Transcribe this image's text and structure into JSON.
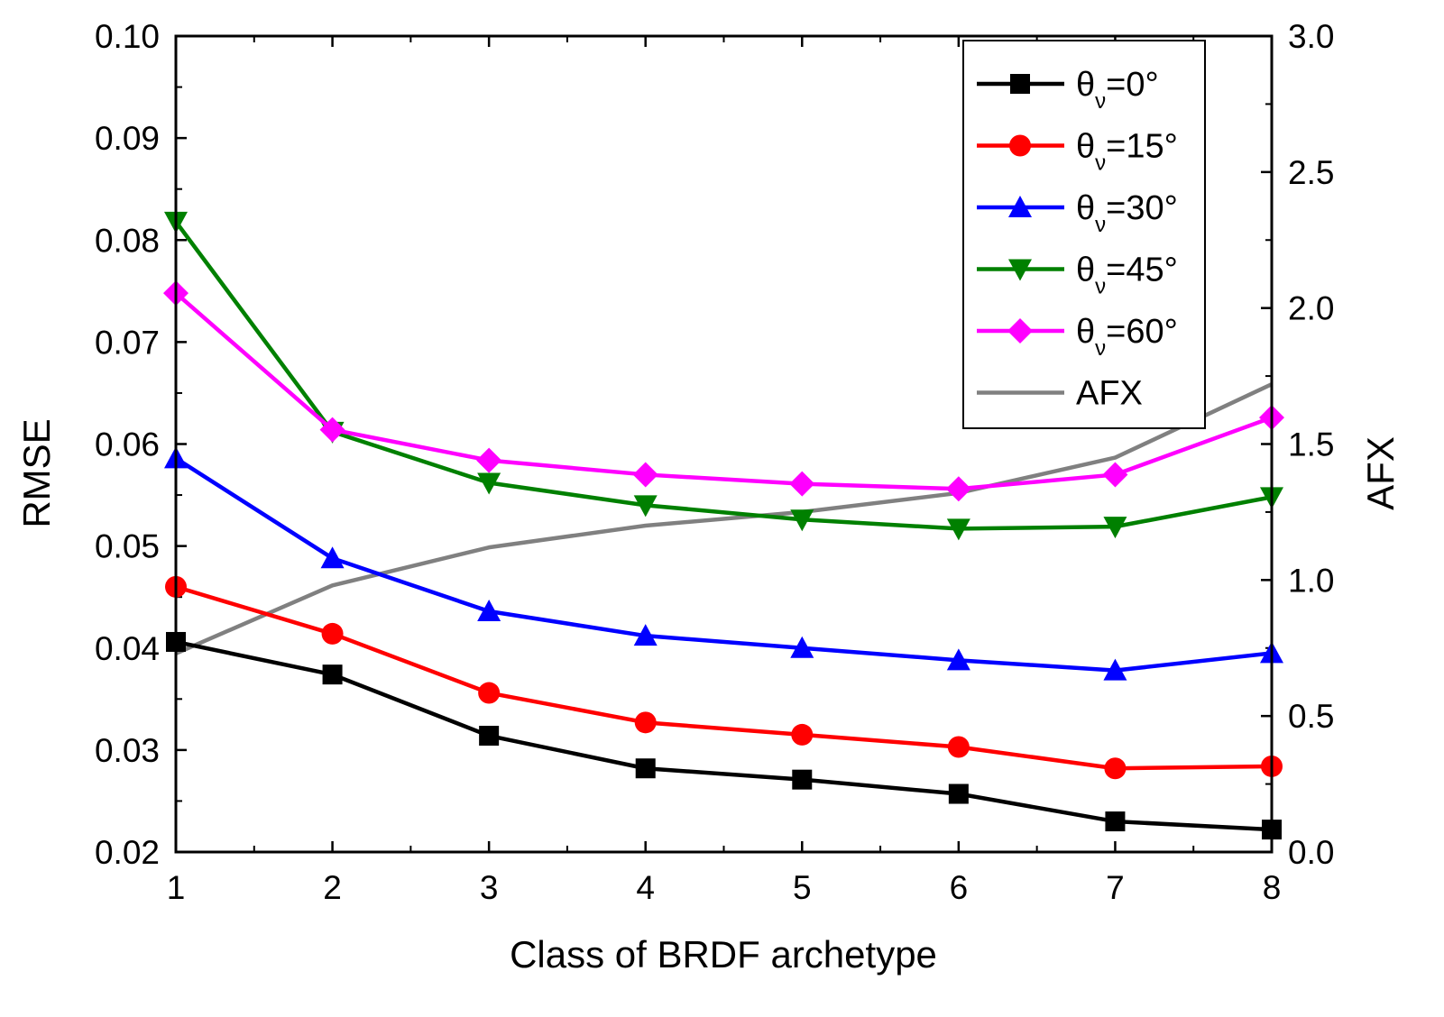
{
  "chart_data": {
    "type": "line",
    "title": "",
    "xlabel": "Class of BRDF archetype",
    "ylabel": "RMSE",
    "y2label": "AFX",
    "x": [
      1,
      2,
      3,
      4,
      5,
      6,
      7,
      8
    ],
    "x_ticks": [
      "1",
      "2",
      "3",
      "4",
      "5",
      "6",
      "7",
      "8"
    ],
    "xlim": [
      1,
      8
    ],
    "ylim": [
      0.02,
      0.1
    ],
    "y_ticks": [
      "0.02",
      "0.03",
      "0.04",
      "0.05",
      "0.06",
      "0.07",
      "0.08",
      "0.09",
      "0.10"
    ],
    "y2lim": [
      0.0,
      3.0
    ],
    "y2_ticks": [
      "0.0",
      "0.5",
      "1.0",
      "1.5",
      "2.0",
      "2.5",
      "3.0"
    ],
    "grid": false,
    "legend_position": "top-right",
    "series": [
      {
        "name": "θν=0°",
        "symbol": "θ",
        "sub": "ν",
        "suffix": "=0°",
        "color": "#000000",
        "marker": "square",
        "axis": "left",
        "values": [
          0.0406,
          0.0374,
          0.0314,
          0.0282,
          0.0271,
          0.0257,
          0.023,
          0.0222
        ]
      },
      {
        "name": "θν=15°",
        "symbol": "θ",
        "sub": "ν",
        "suffix": "=15°",
        "color": "#ff0000",
        "marker": "circle",
        "axis": "left",
        "values": [
          0.046,
          0.0414,
          0.0356,
          0.0327,
          0.0315,
          0.0303,
          0.0282,
          0.0284
        ]
      },
      {
        "name": "θν=30°",
        "symbol": "θ",
        "sub": "ν",
        "suffix": "=30°",
        "color": "#0000ff",
        "marker": "triangle-up",
        "axis": "left",
        "values": [
          0.0586,
          0.0488,
          0.0436,
          0.0412,
          0.04,
          0.0388,
          0.0378,
          0.0395
        ]
      },
      {
        "name": "θν=45°",
        "symbol": "θ",
        "sub": "ν",
        "suffix": "=45°",
        "color": "#008000",
        "marker": "triangle-down",
        "axis": "left",
        "values": [
          0.0818,
          0.0612,
          0.0562,
          0.054,
          0.0526,
          0.0517,
          0.0519,
          0.0548
        ]
      },
      {
        "name": "θν=60°",
        "symbol": "θ",
        "sub": "ν",
        "suffix": "=60°",
        "color": "#ff00ff",
        "marker": "diamond",
        "axis": "left",
        "values": [
          0.0748,
          0.0614,
          0.0584,
          0.057,
          0.0561,
          0.0556,
          0.057,
          0.0626
        ]
      },
      {
        "name": "AFX",
        "symbol": "",
        "sub": "",
        "suffix": "AFX",
        "color": "#808080",
        "marker": "none",
        "axis": "right",
        "values": [
          0.73,
          0.98,
          1.12,
          1.2,
          1.25,
          1.32,
          1.45,
          1.72
        ]
      }
    ]
  }
}
